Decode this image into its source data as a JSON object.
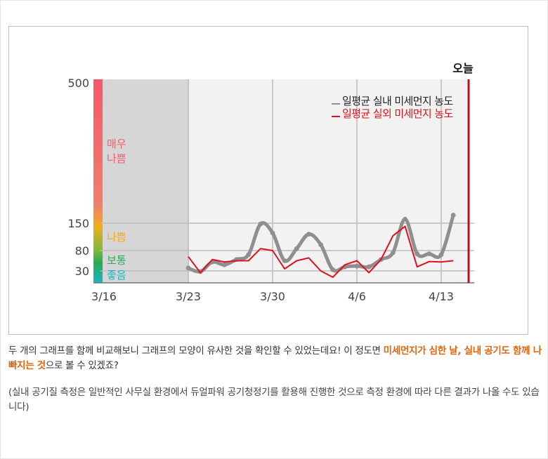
{
  "colors": {
    "indoor": "#8f8f8f",
    "outdoor": "#e0111b",
    "today_line": "#b5141b",
    "past_shade": "#d6d6d6",
    "plot_bg": "#f2f2f2",
    "very_bad": "#f0626e",
    "bad": "#f2ab1a",
    "normal": "#2aab55",
    "good": "#16b7c0",
    "highlight": "#e0650b"
  },
  "chart_data": {
    "type": "line",
    "today_label": "오늘",
    "x_ticks": [
      "3/16",
      "3/23",
      "3/30",
      "4/6",
      "4/13"
    ],
    "y_ticks": [
      "500",
      "150",
      "80",
      "30"
    ],
    "grade_bands": [
      {
        "label": "매우\n나쁨",
        "color": "#f0626e"
      },
      {
        "label": "나쁨",
        "color": "#f2ab1a"
      },
      {
        "label": "보통",
        "color": "#2aab55"
      },
      {
        "label": "좋음",
        "color": "#16b7c0"
      }
    ],
    "series": [
      {
        "name": "일평균 실내 미세먼지 농도",
        "color": "#8f8f8f",
        "x": [
          "3/23",
          "3/24",
          "3/25",
          "3/26",
          "3/27",
          "3/28",
          "3/29",
          "3/30",
          "3/31",
          "4/1",
          "4/2",
          "4/3",
          "4/4",
          "4/5",
          "4/6",
          "4/7",
          "4/8",
          "4/9",
          "4/10",
          "4/11",
          "4/12",
          "4/13",
          "4/14"
        ],
        "values": [
          37,
          28,
          52,
          45,
          58,
          70,
          148,
          125,
          55,
          85,
          122,
          95,
          33,
          40,
          42,
          40,
          58,
          75,
          160,
          72,
          72,
          70,
          170
        ]
      },
      {
        "name": "일평균 실외 미세먼지 농도",
        "color": "#e0111b",
        "x": [
          "3/23",
          "3/24",
          "3/25",
          "3/26",
          "3/27",
          "3/28",
          "3/29",
          "3/30",
          "3/31",
          "4/1",
          "4/2",
          "4/3",
          "4/4",
          "4/5",
          "4/6",
          "4/7",
          "4/8",
          "4/9",
          "4/10",
          "4/11",
          "4/12",
          "4/13",
          "4/14"
        ],
        "values": [
          65,
          25,
          58,
          52,
          55,
          55,
          85,
          80,
          35,
          55,
          62,
          30,
          12,
          45,
          55,
          25,
          58,
          118,
          142,
          40,
          53,
          52,
          55
        ]
      }
    ]
  },
  "caption": {
    "p1_a": "두 개의 그래프를 함께 비교해보니 그래프의 모양이 유사한 것을 확인할 수 있었는데요! 이 정도면 ",
    "p1_b": "미세먼지가 심한 날, 실내 공기도 함께 나빠지는 것",
    "p1_c": "으로 볼 수 있겠죠?",
    "p2": "(실내 공기질 측정은 일반적인 사무실 환경에서 듀얼파워 공기청정기를 활용해 진행한 것으로 측정 환경에 따라 다른 결과가 나올 수도 있습니다)"
  }
}
